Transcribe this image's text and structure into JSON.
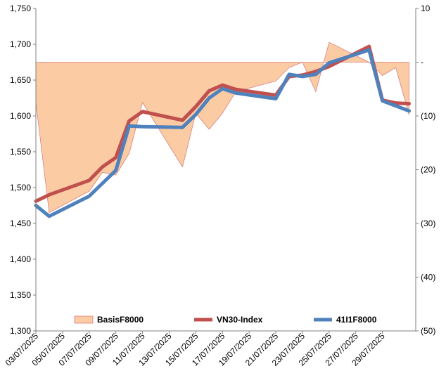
{
  "chart_data": {
    "type": "line",
    "x": [
      "03/07/2025",
      "04/07/2025",
      "07/07/2025",
      "08/07/2025",
      "09/07/2025",
      "10/07/2025",
      "11/07/2025",
      "14/07/2025",
      "15/07/2025",
      "16/07/2025",
      "17/07/2025",
      "18/07/2025",
      "21/07/2025",
      "22/07/2025",
      "23/07/2025",
      "24/07/2025",
      "25/07/2025",
      "28/07/2025",
      "29/07/2025",
      "30/07/2025",
      "31/07/2025"
    ],
    "x_tick_labels": [
      "03/07/2025",
      "05/07/2025",
      "07/07/2025",
      "09/07/2025",
      "11/07/2025",
      "13/07/2025",
      "15/07/2025",
      "17/07/2025",
      "19/07/2025",
      "21/07/2025",
      "23/07/2025",
      "25/07/2025",
      "27/07/2025",
      "29/07/2025"
    ],
    "y_left": {
      "min": 1300,
      "max": 1750,
      "step": 50,
      "tick_labels": [
        "1,300",
        "1,350",
        "1,400",
        "1,450",
        "1,500",
        "1,550",
        "1,600",
        "1,650",
        "1,700",
        "1,750"
      ]
    },
    "y_right": {
      "min": -50,
      "max": 10,
      "step": 10,
      "tick_labels": [
        "(50)",
        "(40)",
        "(30)",
        "(20)",
        "(10)",
        "-",
        "10"
      ]
    },
    "series": [
      {
        "name": "BasisF8000",
        "kind": "area",
        "axis": "right",
        "color": "#FBCBA4",
        "stroke": "#D98080",
        "values": [
          -7.5,
          -28,
          -24,
          -20.5,
          -21,
          -17,
          -7.5,
          -19.5,
          -9.5,
          -12.5,
          -9.5,
          -5.5,
          -3.5,
          -1,
          0,
          -5.5,
          3.7,
          0,
          -2.5,
          -1,
          -9.8
        ]
      },
      {
        "name": "VN30-Index",
        "kind": "line",
        "axis": "left",
        "color": "#C0504D",
        "values": [
          1481,
          1490,
          1510,
          1529,
          1542,
          1593,
          1606,
          1594,
          1613,
          1635,
          1643,
          1637,
          1629,
          1655,
          1657,
          1662,
          1669,
          1697,
          1622,
          1618,
          1617
        ]
      },
      {
        "name": "41I1F8000",
        "kind": "line",
        "axis": "left",
        "color": "#4F81BD",
        "values": [
          1475,
          1460,
          1488,
          1506,
          1524,
          1586,
          1585,
          1584,
          1602,
          1625,
          1638,
          1632,
          1624,
          1658,
          1655,
          1658,
          1674,
          1692,
          1621,
          1614,
          1607
        ]
      }
    ],
    "legend": {
      "position": "bottom-inside"
    },
    "grid": false
  }
}
